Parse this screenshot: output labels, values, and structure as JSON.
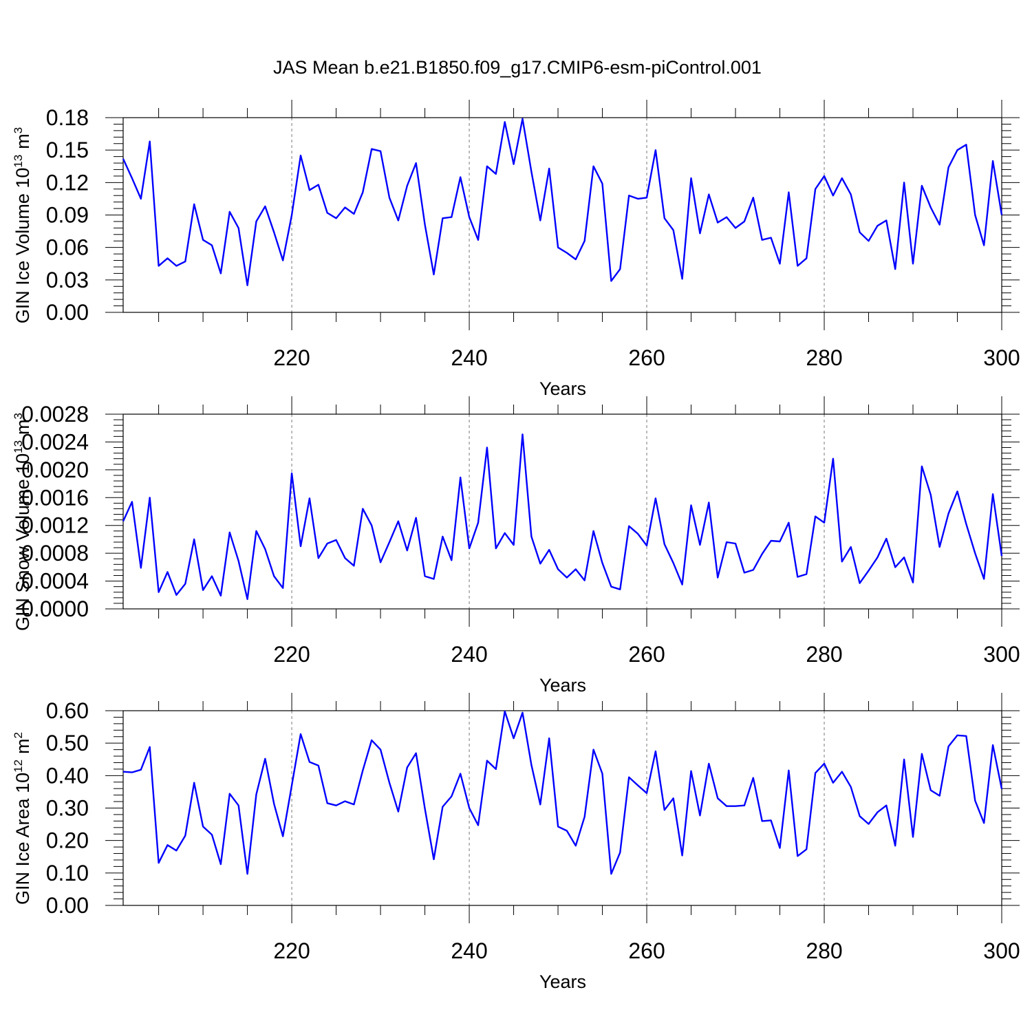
{
  "chart_data": {
    "title": "JAS Mean b.e21.B1850.f09_g17.CMIP6-esm-piControl.001",
    "line_color": "#0000ff",
    "grid": "dashed vertical lines at major x ticks",
    "panels": [
      {
        "type": "line",
        "ylabel": "GIN Ice Volume 10",
        "ylabel_exp": "13",
        "ylabel_unit": "m",
        "ylabel_unit_exp": "3",
        "xlabel": "Years",
        "xlim": [
          201,
          300
        ],
        "ylim": [
          0,
          0.18
        ],
        "yticks": [
          "0.00",
          "0.03",
          "0.06",
          "0.09",
          "0.12",
          "0.15",
          "0.18"
        ],
        "xticks": [
          "220",
          "240",
          "260",
          "280",
          "300"
        ],
        "x_start": 201,
        "values": [
          0.142,
          0.124,
          0.105,
          0.158,
          0.043,
          0.05,
          0.043,
          0.047,
          0.1,
          0.067,
          0.062,
          0.036,
          0.093,
          0.078,
          0.025,
          0.084,
          0.098,
          0.074,
          0.048,
          0.09,
          0.145,
          0.113,
          0.118,
          0.092,
          0.087,
          0.097,
          0.091,
          0.111,
          0.151,
          0.149,
          0.106,
          0.085,
          0.117,
          0.138,
          0.081,
          0.035,
          0.087,
          0.088,
          0.125,
          0.088,
          0.067,
          0.135,
          0.128,
          0.176,
          0.137,
          0.179,
          0.13,
          0.085,
          0.133,
          0.06,
          0.055,
          0.049,
          0.066,
          0.135,
          0.119,
          0.029,
          0.04,
          0.108,
          0.105,
          0.106,
          0.15,
          0.087,
          0.076,
          0.031,
          0.124,
          0.073,
          0.109,
          0.083,
          0.088,
          0.078,
          0.084,
          0.106,
          0.067,
          0.069,
          0.045,
          0.111,
          0.043,
          0.05,
          0.114,
          0.126,
          0.108,
          0.124,
          0.109,
          0.074,
          0.066,
          0.08,
          0.085,
          0.04,
          0.12,
          0.045,
          0.117,
          0.097,
          0.081,
          0.134,
          0.15,
          0.155,
          0.09,
          0.062,
          0.14,
          0.09
        ]
      },
      {
        "type": "line",
        "ylabel": "GIN Snow Volume 10",
        "ylabel_exp": "13",
        "ylabel_unit": "m",
        "ylabel_unit_exp": "3",
        "xlabel": "Years",
        "xlim": [
          201,
          300
        ],
        "ylim": [
          0,
          0.0028
        ],
        "yticks": [
          "0.0000",
          "0.0004",
          "0.0008",
          "0.0012",
          "0.0016",
          "0.0020",
          "0.0024",
          "0.0028"
        ],
        "xticks": [
          "220",
          "240",
          "260",
          "280",
          "300"
        ],
        "x_start": 201,
        "values": [
          0.00126,
          0.00154,
          0.00059,
          0.0016,
          0.00024,
          0.00053,
          0.0002,
          0.00036,
          0.001,
          0.00027,
          0.00047,
          0.00019,
          0.0011,
          0.00069,
          0.00014,
          0.00112,
          0.00086,
          0.00047,
          0.0003,
          0.00195,
          0.0009,
          0.00159,
          0.00073,
          0.00094,
          0.00099,
          0.00073,
          0.00062,
          0.00144,
          0.0012,
          0.00067,
          0.00096,
          0.00126,
          0.00084,
          0.00131,
          0.00047,
          0.00043,
          0.00104,
          0.0007,
          0.00189,
          0.00087,
          0.00124,
          0.00232,
          0.00087,
          0.00109,
          0.00092,
          0.00251,
          0.00104,
          0.00065,
          0.00085,
          0.00057,
          0.00045,
          0.00057,
          0.00041,
          0.00112,
          0.00066,
          0.00032,
          0.00028,
          0.00119,
          0.00108,
          0.00091,
          0.00159,
          0.00093,
          0.00066,
          0.00035,
          0.00149,
          0.00092,
          0.00153,
          0.00045,
          0.00096,
          0.00094,
          0.00052,
          0.00056,
          0.00079,
          0.00098,
          0.00097,
          0.00124,
          0.00046,
          0.0005,
          0.00133,
          0.00124,
          0.00216,
          0.00068,
          0.00089,
          0.00037,
          0.00055,
          0.00074,
          0.00101,
          0.0006,
          0.00074,
          0.00038,
          0.00205,
          0.00164,
          0.00089,
          0.00137,
          0.00169,
          0.00122,
          0.0008,
          0.00043,
          0.00165,
          0.00076
        ]
      },
      {
        "type": "line",
        "ylabel": "GIN Ice Area 10",
        "ylabel_exp": "12",
        "ylabel_unit": "m",
        "ylabel_unit_exp": "2",
        "xlabel": "Years",
        "xlim": [
          201,
          300
        ],
        "ylim": [
          0,
          0.6
        ],
        "yticks": [
          "0.00",
          "0.10",
          "0.20",
          "0.30",
          "0.40",
          "0.50",
          "0.60"
        ],
        "xticks": [
          "220",
          "240",
          "260",
          "280",
          "300"
        ],
        "x_start": 201,
        "values": [
          0.412,
          0.41,
          0.418,
          0.488,
          0.131,
          0.186,
          0.169,
          0.215,
          0.378,
          0.243,
          0.218,
          0.127,
          0.344,
          0.308,
          0.097,
          0.342,
          0.452,
          0.313,
          0.213,
          0.37,
          0.528,
          0.442,
          0.431,
          0.315,
          0.308,
          0.321,
          0.311,
          0.416,
          0.509,
          0.48,
          0.378,
          0.289,
          0.425,
          0.469,
          0.298,
          0.142,
          0.304,
          0.336,
          0.406,
          0.3,
          0.247,
          0.446,
          0.42,
          0.598,
          0.515,
          0.594,
          0.433,
          0.311,
          0.515,
          0.243,
          0.23,
          0.184,
          0.273,
          0.48,
          0.406,
          0.097,
          0.163,
          0.395,
          0.37,
          0.346,
          0.475,
          0.294,
          0.33,
          0.154,
          0.414,
          0.277,
          0.437,
          0.33,
          0.306,
          0.306,
          0.308,
          0.393,
          0.26,
          0.262,
          0.177,
          0.416,
          0.152,
          0.173,
          0.408,
          0.437,
          0.378,
          0.412,
          0.365,
          0.275,
          0.251,
          0.287,
          0.308,
          0.184,
          0.45,
          0.211,
          0.467,
          0.355,
          0.338,
          0.49,
          0.524,
          0.522,
          0.323,
          0.254,
          0.494,
          0.359
        ]
      }
    ]
  }
}
